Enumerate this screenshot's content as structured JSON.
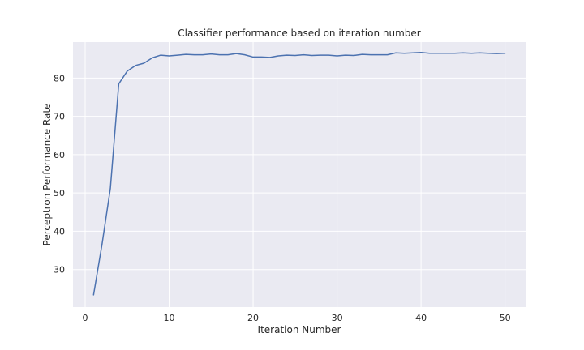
{
  "chart_data": {
    "type": "line",
    "title": "Classifier performance based on iteration number",
    "xlabel": "Iteration Number",
    "ylabel": "Perceptron Performance Rate",
    "xlim": [
      -1.45,
      52.45
    ],
    "ylim": [
      20.2,
      89.4
    ],
    "xticks": [
      0,
      10,
      20,
      30,
      40,
      50
    ],
    "yticks": [
      30,
      40,
      50,
      60,
      70,
      80
    ],
    "grid": true,
    "legend": "none",
    "colors": {
      "background": "#eaeaf2",
      "grid": "#ffffff",
      "line": "#4c72b0",
      "text": "#262626"
    },
    "series": [
      {
        "x": [
          1,
          2,
          3,
          4,
          5,
          6,
          7,
          8,
          9,
          10,
          11,
          12,
          13,
          14,
          15,
          16,
          17,
          18,
          19,
          20,
          21,
          22,
          23,
          24,
          25,
          26,
          27,
          28,
          29,
          30,
          31,
          32,
          33,
          34,
          35,
          36,
          37,
          38,
          39,
          40,
          41,
          42,
          43,
          44,
          45,
          46,
          47,
          48,
          49,
          50
        ],
        "y": [
          23.4,
          36.5,
          51.2,
          78.5,
          81.8,
          83.3,
          83.9,
          85.3,
          86.0,
          85.8,
          86.0,
          86.2,
          86.1,
          86.1,
          86.3,
          86.1,
          86.1,
          86.4,
          86.1,
          85.5,
          85.5,
          85.4,
          85.8,
          86.0,
          85.9,
          86.1,
          85.9,
          86.0,
          86.0,
          85.8,
          86.0,
          85.9,
          86.2,
          86.1,
          86.1,
          86.1,
          86.6,
          86.5,
          86.6,
          86.7,
          86.5,
          86.5,
          86.5,
          86.5,
          86.6,
          86.5,
          86.6,
          86.5,
          86.4,
          86.5
        ]
      }
    ]
  }
}
